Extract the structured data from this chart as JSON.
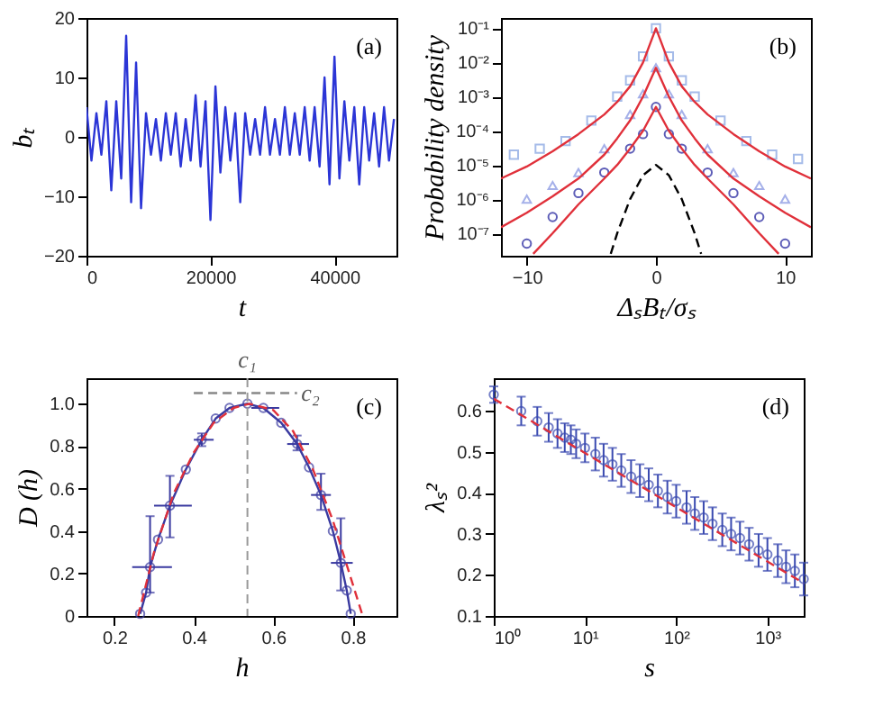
{
  "chart_data": [
    {
      "type": "line",
      "xlabel": "t",
      "ylabel": "bₜ",
      "annotations": [
        "(a)"
      ],
      "xlim": [
        0,
        50000
      ],
      "ylim": [
        -20,
        20
      ],
      "xticks": [
        0,
        20000,
        40000
      ],
      "yticks": [
        -20,
        -10,
        0,
        10,
        20
      ],
      "grid": false,
      "marker": "none",
      "line_style": "solid",
      "series": [
        {
          "color": "#2b35d6",
          "x": [
            0,
            800,
            1600,
            2400,
            3200,
            4000,
            4800,
            5600,
            6400,
            7200,
            8000,
            8800,
            9600,
            10400,
            11200,
            12000,
            12800,
            13600,
            14400,
            15200,
            16000,
            16800,
            17600,
            18400,
            19200,
            20000,
            20800,
            21600,
            22400,
            23200,
            24000,
            24800,
            25600,
            26400,
            27200,
            28000,
            28800,
            29600,
            30400,
            31200,
            32000,
            32800,
            33600,
            34400,
            35200,
            36000,
            36800,
            37600,
            38400,
            39200,
            40000,
            40800,
            41600,
            42400,
            43200,
            44000,
            44800,
            45600,
            46400,
            47200,
            48000,
            48800,
            49600
          ],
          "values": [
            5,
            -4,
            4,
            -3,
            6,
            -9,
            6,
            -7,
            17,
            -11,
            12.5,
            -12,
            4,
            -3,
            3,
            -4,
            4,
            -3,
            4,
            -5,
            3,
            -4,
            7,
            -5,
            6,
            -14,
            8.5,
            -6,
            5,
            -4,
            4,
            -11,
            4,
            -3,
            3,
            -3,
            5,
            -3,
            3,
            -3,
            5,
            -3,
            4,
            -3,
            5,
            -4,
            5,
            -5,
            10,
            -8,
            13.5,
            -7,
            6,
            -4,
            5,
            -8,
            5,
            -4,
            4,
            -5,
            5,
            -4,
            3
          ]
        }
      ]
    },
    {
      "type": "scatter",
      "xlabel": "ΔₛBₜ/σₛ",
      "ylabel": "Probability density",
      "annotations": [
        "(b)"
      ],
      "xlim": [
        -12,
        12
      ],
      "ylim": [
        2.2e-08,
        0.2
      ],
      "xticks": [
        -10,
        0,
        10
      ],
      "log": "y",
      "grid": false,
      "yticks": [
        {
          "value": 1e-07,
          "label": "10⁻⁷"
        },
        {
          "value": 1e-06,
          "label": "10⁻⁶"
        },
        {
          "value": 1e-05,
          "label": "10⁻⁵"
        },
        {
          "value": 0.0001,
          "label": "10⁻⁴"
        },
        {
          "value": 0.001,
          "label": "10⁻³"
        },
        {
          "value": 0.01,
          "label": "10⁻²"
        },
        {
          "value": 0.1,
          "label": "10⁻¹"
        }
      ],
      "series": [
        {
          "type": "scatter",
          "marker": "square",
          "color": "#7f9fe0",
          "x": [
            -11,
            -9,
            -7,
            -5,
            -3,
            -2,
            -1,
            0,
            1,
            2,
            3,
            5,
            7,
            9,
            11
          ],
          "values": [
            2e-05,
            3e-05,
            5e-05,
            0.0002,
            0.001,
            0.003,
            0.015,
            0.1,
            0.015,
            0.003,
            0.001,
            0.0002,
            5e-05,
            2e-05,
            1.5e-05
          ]
        },
        {
          "type": "scatter",
          "marker": "triangle",
          "color": "#7f8fe0",
          "x": [
            -10,
            -8,
            -6,
            -4,
            -2,
            -1,
            0,
            1,
            2,
            4,
            6,
            8,
            10
          ],
          "values": [
            1e-06,
            2.5e-06,
            6e-06,
            3e-05,
            0.0003,
            0.0012,
            0.007,
            0.0012,
            0.0003,
            3e-05,
            6e-06,
            2.5e-06,
            1e-06
          ]
        },
        {
          "type": "scatter",
          "marker": "circle",
          "color": "#1a1a9a",
          "x": [
            -10,
            -8,
            -6,
            -4,
            -2,
            -1,
            0,
            1,
            2,
            4,
            6,
            8,
            10
          ],
          "values": [
            5e-08,
            3e-07,
            1.5e-06,
            6e-06,
            3e-05,
            8e-05,
            0.0005,
            8e-05,
            3e-05,
            6e-06,
            1.5e-06,
            3e-07,
            5e-08
          ]
        },
        {
          "type": "line",
          "marker": "none",
          "line_style": "solid",
          "color": "#e0303a",
          "x": [
            -12,
            -10,
            -8,
            -6,
            -4,
            -3,
            -2,
            -1,
            0,
            1,
            2,
            3,
            4,
            6,
            8,
            10,
            12
          ],
          "values": [
            4e-06,
            9e-06,
            2.5e-05,
            8e-05,
            0.0003,
            0.0007,
            0.002,
            0.01,
            0.1,
            0.01,
            0.002,
            0.0007,
            0.0003,
            8e-05,
            2.5e-05,
            9e-06,
            4e-06
          ]
        },
        {
          "type": "line",
          "marker": "none",
          "line_style": "solid",
          "color": "#e0303a",
          "x": [
            -12,
            -10,
            -8,
            -6,
            -4,
            -3,
            -2,
            -1,
            0,
            1,
            2,
            3,
            4,
            6,
            8,
            10,
            12
          ],
          "values": [
            1.5e-07,
            4e-07,
            1.2e-06,
            4e-06,
            2e-05,
            6e-05,
            0.0002,
            0.001,
            0.007,
            0.001,
            0.0002,
            6e-05,
            2e-05,
            4e-06,
            1.2e-06,
            4e-07,
            1.5e-07
          ]
        },
        {
          "type": "line",
          "marker": "none",
          "line_style": "solid",
          "color": "#e0303a",
          "x": [
            -9.5,
            -8,
            -6,
            -4,
            -3,
            -2,
            -1,
            0,
            1,
            2,
            3,
            4,
            6,
            8,
            9.5
          ],
          "values": [
            2.5e-08,
            1e-07,
            7e-07,
            4e-06,
            1e-05,
            3e-05,
            0.0001,
            0.0005,
            0.0001,
            3e-05,
            1e-05,
            4e-06,
            7e-07,
            1e-07,
            2.5e-08
          ]
        },
        {
          "type": "line",
          "marker": "none",
          "line_style": "dashed",
          "color": "#000000",
          "x": [
            -3.5,
            -3,
            -2,
            -1,
            0,
            1,
            2,
            3,
            3.5
          ],
          "values": [
            2.5e-08,
            1e-07,
            1e-06,
            5e-06,
            1e-05,
            5e-06,
            1e-06,
            1e-07,
            2.5e-08
          ]
        }
      ]
    },
    {
      "type": "line",
      "xlabel": "h",
      "ylabel": "D (h)",
      "xlim": [
        0.13,
        0.91
      ],
      "ylim": [
        0,
        1.12
      ],
      "xticks": [
        0.2,
        0.4,
        0.6,
        0.8
      ],
      "yticks": [
        0,
        0.2,
        0.4,
        0.6,
        0.8,
        {
          "value": 1,
          "label": "1.0"
        }
      ],
      "grid": false,
      "annotations": [
        "(c)",
        {
          "text": "c₂",
          "x": 0.67,
          "y": 1.05
        }
      ],
      "ref_lines": [
        {
          "axis": "x",
          "value": 0.535,
          "label": "c₁",
          "color": "#999999",
          "line_style": "dashed"
        }
      ],
      "series": [
        {
          "type": "line",
          "marker": "circle",
          "line_style": "solid",
          "color": "#3a3aa0",
          "x": [
            0.265,
            0.28,
            0.29,
            0.31,
            0.34,
            0.38,
            0.42,
            0.455,
            0.49,
            0.535,
            0.575,
            0.62,
            0.66,
            0.69,
            0.72,
            0.75,
            0.77,
            0.785,
            0.795
          ],
          "values": [
            0.01,
            0.11,
            0.23,
            0.36,
            0.52,
            0.69,
            0.83,
            0.93,
            0.98,
            1.0,
            0.98,
            0.91,
            0.81,
            0.7,
            0.57,
            0.4,
            0.25,
            0.12,
            0.01
          ],
          "errors": [
            null,
            null,
            [
              0.11,
              0.47
            ],
            null,
            [
              0.37,
              0.66
            ],
            null,
            [
              0.8,
              0.86
            ],
            null,
            null,
            null,
            null,
            null,
            [
              0.78,
              0.85
            ],
            null,
            [
              0.5,
              0.67
            ],
            null,
            [
              0.12,
              0.46
            ],
            null,
            null
          ],
          "xerrors": [
            null,
            null,
            [
              0.245,
              0.345
            ],
            null,
            [
              0.3,
              0.395
            ],
            null,
            [
              0.4,
              0.45
            ],
            null,
            null,
            null,
            [
              0.545,
              0.615
            ],
            null,
            [
              0.635,
              0.69
            ],
            null,
            [
              0.695,
              0.745
            ],
            null,
            [
              0.745,
              0.8
            ],
            null,
            null
          ]
        },
        {
          "type": "line",
          "marker": "none",
          "line_style": "dashed",
          "color": "#e0303a",
          "x": [
            0.26,
            0.3,
            0.35,
            0.4,
            0.45,
            0.5,
            0.54,
            0.6,
            0.65,
            0.7,
            0.75,
            0.8,
            0.825
          ],
          "values": [
            0,
            0.3,
            0.58,
            0.77,
            0.91,
            0.98,
            1.0,
            0.97,
            0.87,
            0.69,
            0.45,
            0.15,
            0
          ]
        },
        {
          "type": "line",
          "marker": "none",
          "line_style": "dashed",
          "color": "#888888",
          "x": [
            0.4,
            0.66
          ],
          "values": [
            1.05,
            1.05
          ]
        }
      ]
    },
    {
      "type": "scatter",
      "xlabel": "s",
      "ylabel": "λₛ²",
      "annotations": [
        "(d)"
      ],
      "xlim": [
        1,
        2500
      ],
      "ylim": [
        0.1,
        0.68
      ],
      "log": "x",
      "grid": false,
      "xticks": [
        {
          "value": 1,
          "label": "10⁰"
        },
        {
          "value": 10,
          "label": "10¹"
        },
        {
          "value": 100,
          "label": "10²"
        },
        {
          "value": 1000,
          "label": "10³"
        }
      ],
      "yticks": [
        0.1,
        0.2,
        0.3,
        0.4,
        0.5,
        0.6
      ],
      "series": [
        {
          "type": "scatter",
          "marker": "circle",
          "color": "#3a4ab0",
          "x": [
            1,
            2,
            3,
            4,
            5,
            6,
            7,
            8,
            10,
            13,
            16,
            20,
            25,
            32,
            40,
            50,
            63,
            80,
            100,
            130,
            160,
            200,
            250,
            320,
            400,
            500,
            630,
            800,
            1000,
            1300,
            1600,
            2000,
            2500
          ],
          "values": [
            0.64,
            0.6,
            0.575,
            0.56,
            0.545,
            0.535,
            0.53,
            0.52,
            0.51,
            0.495,
            0.48,
            0.47,
            0.455,
            0.44,
            0.43,
            0.42,
            0.405,
            0.39,
            0.38,
            0.365,
            0.35,
            0.34,
            0.325,
            0.31,
            0.3,
            0.29,
            0.275,
            0.26,
            0.25,
            0.235,
            0.22,
            0.21,
            0.19
          ],
          "errors": [
            0.02,
            0.035,
            0.035,
            0.035,
            0.035,
            0.035,
            0.035,
            0.035,
            0.035,
            0.04,
            0.04,
            0.04,
            0.04,
            0.04,
            0.04,
            0.04,
            0.04,
            0.04,
            0.04,
            0.04,
            0.04,
            0.04,
            0.04,
            0.04,
            0.04,
            0.04,
            0.04,
            0.04,
            0.04,
            0.04,
            0.04,
            0.04,
            0.04
          ]
        },
        {
          "type": "line",
          "marker": "none",
          "line_style": "dashed",
          "color": "#e0303a",
          "x": [
            1,
            2500
          ],
          "values": [
            0.63,
            0.18
          ]
        }
      ]
    }
  ]
}
